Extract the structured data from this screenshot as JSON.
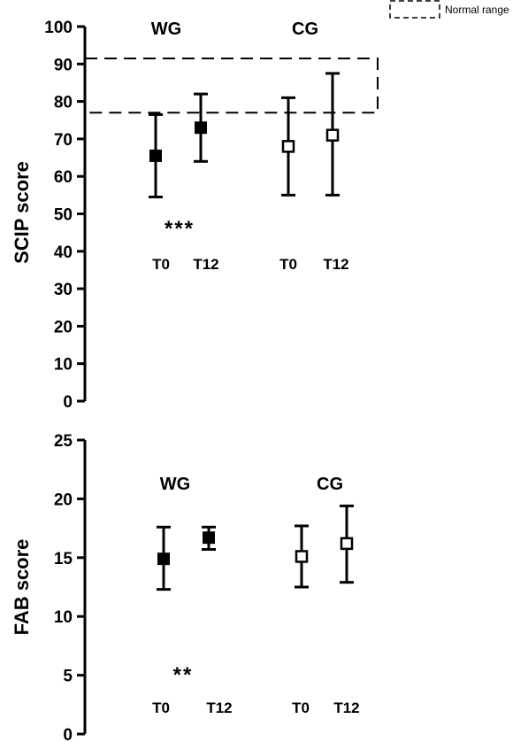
{
  "chart_data": [
    {
      "type": "scatter",
      "ylabel": "SCIP score",
      "ylim": [
        0,
        100
      ],
      "yticks": [
        "0",
        "10",
        "20",
        "30",
        "40",
        "50",
        "60",
        "70",
        "80",
        "90",
        "100"
      ],
      "groups": [
        "WG",
        "CG"
      ],
      "timepoints": [
        "T0",
        "T12",
        "T0",
        "T12"
      ],
      "points": [
        {
          "group": "WG",
          "time": "T0",
          "mean": 65.5,
          "lower": 54.5,
          "upper": 76.5,
          "marker": "filled-square"
        },
        {
          "group": "WG",
          "time": "T12",
          "mean": 73,
          "lower": 64,
          "upper": 82,
          "marker": "filled-square"
        },
        {
          "group": "CG",
          "time": "T0",
          "mean": 68,
          "lower": 55,
          "upper": 81,
          "marker": "open-square"
        },
        {
          "group": "CG",
          "time": "T12",
          "mean": 71,
          "lower": 55,
          "upper": 87.5,
          "marker": "open-square"
        }
      ],
      "normal_range": [
        77,
        91.5
      ],
      "significance": "***",
      "legend": {
        "label": "Normal range",
        "position": "top-right"
      }
    },
    {
      "type": "scatter",
      "ylabel": "FAB score",
      "ylim": [
        0,
        25
      ],
      "yticks": [
        "0",
        "5",
        "10",
        "15",
        "20",
        "25"
      ],
      "groups": [
        "WG",
        "CG"
      ],
      "timepoints": [
        "T0",
        "T12",
        "T0",
        "T12"
      ],
      "points": [
        {
          "group": "WG",
          "time": "T0",
          "mean": 14.9,
          "lower": 12.3,
          "upper": 17.6,
          "marker": "filled-square"
        },
        {
          "group": "WG",
          "time": "T12",
          "mean": 16.7,
          "lower": 15.7,
          "upper": 17.6,
          "marker": "filled-square"
        },
        {
          "group": "CG",
          "time": "T0",
          "mean": 15.1,
          "lower": 12.5,
          "upper": 17.7,
          "marker": "open-square"
        },
        {
          "group": "CG",
          "time": "T12",
          "mean": 16.2,
          "lower": 12.9,
          "upper": 19.4,
          "marker": "open-square"
        }
      ],
      "significance": "**"
    }
  ]
}
